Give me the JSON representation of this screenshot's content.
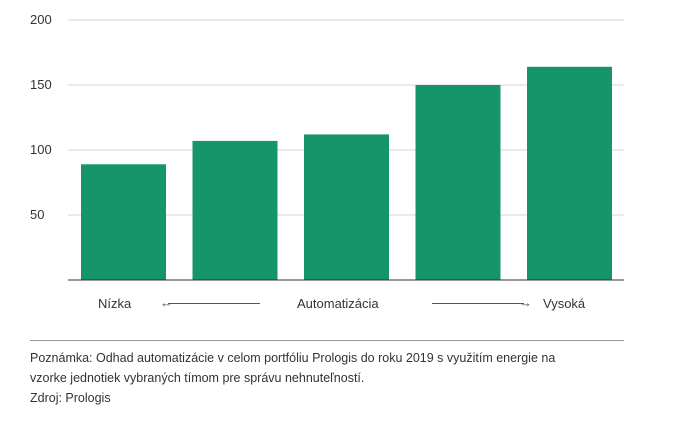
{
  "chart_data": {
    "type": "bar",
    "categories": [
      "",
      "",
      "",
      "",
      ""
    ],
    "values": [
      89,
      107,
      112,
      150,
      164
    ],
    "ylim": [
      0,
      200
    ],
    "yticks": [
      50,
      100,
      150,
      200
    ],
    "grid": true,
    "bar_color": "#16956a",
    "xaxis_description": {
      "left": "Nízka",
      "center": "Automatizácia",
      "right": "Vysoká"
    }
  },
  "note": {
    "line1": "Poznámka: Odhad automatizácie v celom portfóliu Prologis do roku 2019 s využitím energie na",
    "line2": "vzorke jednotiek vybraných tímom pre správu nehnuteľností.",
    "source": "Zdroj: Prologis"
  }
}
